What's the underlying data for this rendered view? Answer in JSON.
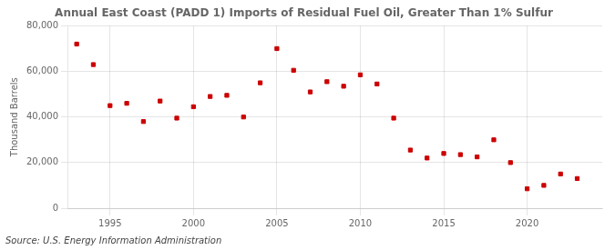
{
  "chart_data": {
    "type": "scatter",
    "title": "Annual East Coast (PADD 1) Imports of Residual Fuel Oil, Greater Than 1% Sulfur",
    "ylabel": "Thousand Barrels",
    "source": "Source: U.S. Energy Information Administration",
    "x": [
      1993,
      1994,
      1995,
      1996,
      1997,
      1998,
      1999,
      2000,
      2001,
      2002,
      2003,
      2004,
      2005,
      2006,
      2007,
      2008,
      2009,
      2010,
      2011,
      2012,
      2013,
      2014,
      2015,
      2016,
      2017,
      2018,
      2019,
      2020,
      2021,
      2022,
      2023
    ],
    "values": [
      72000,
      63000,
      45000,
      46000,
      38000,
      47000,
      39500,
      44500,
      49000,
      49500,
      40000,
      55000,
      70000,
      60500,
      51000,
      55500,
      53500,
      58500,
      54500,
      39500,
      25500,
      22000,
      24000,
      23500,
      22500,
      30000,
      20000,
      8500,
      10000,
      15000,
      13000
    ],
    "color": "#cc0000",
    "marker": "square",
    "grid": true,
    "xlim": [
      1992.5,
      2024.5
    ],
    "xticks": [
      1995,
      2000,
      2005,
      2010,
      2015,
      2020
    ],
    "ylim": [
      0,
      80000
    ],
    "yticks": [
      0,
      {
        "value": 20000,
        "label": "20,000"
      },
      {
        "value": 40000,
        "label": "40,000"
      },
      {
        "value": 60000,
        "label": "60,000"
      },
      {
        "value": 80000,
        "label": "80,000"
      }
    ]
  }
}
